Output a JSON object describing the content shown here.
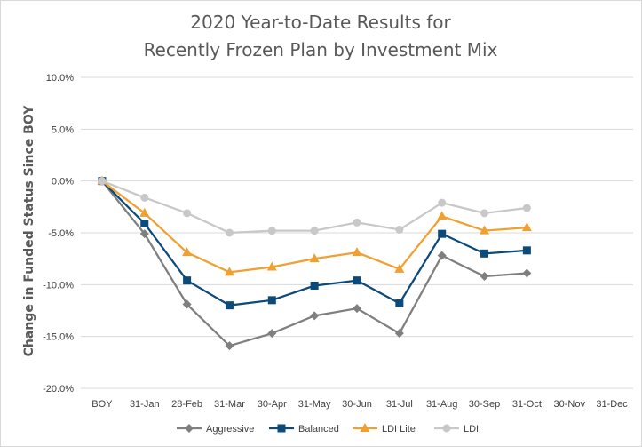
{
  "chart_data": {
    "type": "line",
    "title_lines": [
      "2020 Year-to-Date Results for",
      "Recently Frozen Plan by Investment Mix"
    ],
    "ylabel": "Change in Funded Status Since BOY",
    "xlabel": "",
    "ylim": [
      -20,
      10
    ],
    "ytick_values": [
      10,
      5,
      0,
      -5,
      -10,
      -15,
      -20
    ],
    "ytick_labels": [
      "10.0%",
      "5.0%",
      "0.0%",
      "-5.0%",
      "-10.0%",
      "-15.0%",
      "-20.0%"
    ],
    "categories": [
      "BOY",
      "31-Jan",
      "28-Feb",
      "31-Mar",
      "30-Apr",
      "31-May",
      "30-Jun",
      "31-Jul",
      "31-Aug",
      "30-Sep",
      "31-Oct",
      "30-Nov",
      "31-Dec"
    ],
    "grid": true,
    "legend_position": "bottom",
    "series": [
      {
        "name": "Aggressive",
        "color": "#7f7f7f",
        "marker": "diamond",
        "values": [
          0,
          -5.1,
          -11.9,
          -15.9,
          -14.7,
          -13.0,
          -12.3,
          -14.7,
          -7.2,
          -9.2,
          -8.9,
          null,
          null
        ]
      },
      {
        "name": "Balanced",
        "color": "#0b4a7a",
        "marker": "square",
        "values": [
          0,
          -4.1,
          -9.6,
          -12.0,
          -11.5,
          -10.1,
          -9.6,
          -11.8,
          -5.1,
          -7.0,
          -6.7,
          null,
          null
        ]
      },
      {
        "name": "LDI Lite",
        "color": "#f0a030",
        "marker": "triangle",
        "values": [
          0,
          -3.1,
          -6.9,
          -8.8,
          -8.3,
          -7.5,
          -6.9,
          -8.5,
          -3.4,
          -4.8,
          -4.5,
          null,
          null
        ]
      },
      {
        "name": "LDI",
        "color": "#c8c8c8",
        "marker": "circle",
        "values": [
          0,
          -1.6,
          -3.1,
          -5.0,
          -4.8,
          -4.8,
          -4.0,
          -4.7,
          -2.1,
          -3.1,
          -2.6,
          null,
          null
        ]
      }
    ]
  }
}
